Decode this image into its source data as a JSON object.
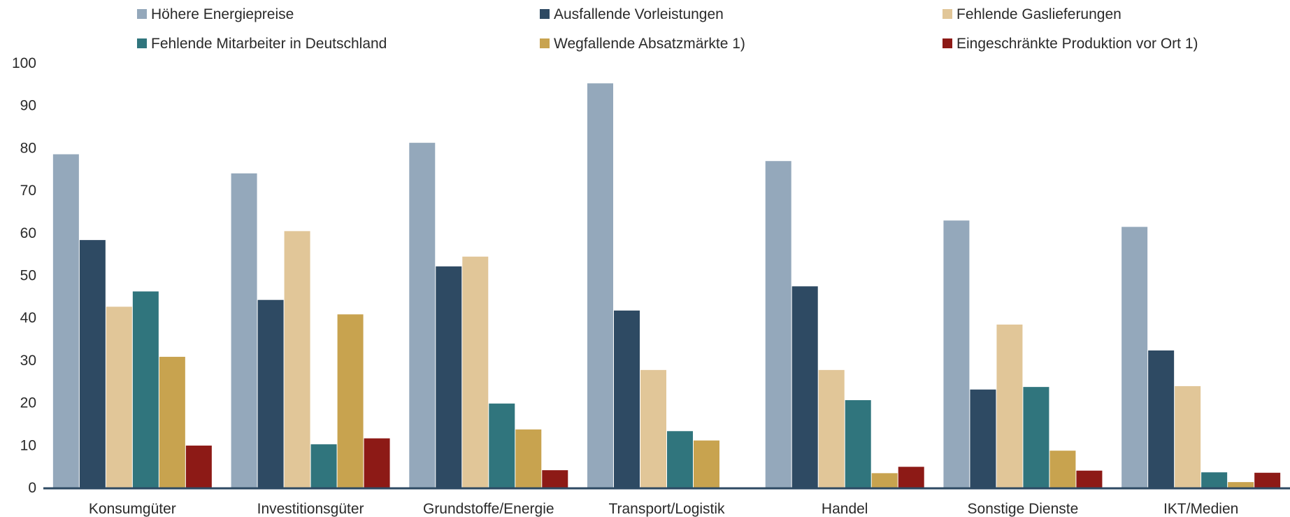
{
  "chart_data": {
    "type": "bar",
    "title": "",
    "xlabel": "",
    "ylabel": "",
    "ylim": [
      0,
      100
    ],
    "yticks": [
      0,
      10,
      20,
      30,
      40,
      50,
      60,
      70,
      80,
      90,
      100
    ],
    "grid": false,
    "legend_position": "top",
    "categories": [
      "Konsumgüter",
      "Investitionsgüter",
      "Grundstoffe/Energie",
      "Transport/Logistik",
      "Handel",
      "Sonstige Dienste",
      "IKT/Medien"
    ],
    "series": [
      {
        "name": "Höhere Energiepreise",
        "color": "#94a8bb",
        "values": [
          78.5,
          74,
          81.2,
          95.2,
          76.9,
          62.9,
          61.4
        ]
      },
      {
        "name": "Ausfallende Vorleistungen",
        "color": "#2e4a63",
        "values": [
          58.3,
          44.2,
          52.1,
          41.7,
          47.4,
          23.1,
          32.3
        ]
      },
      {
        "name": "Fehlende Gaslieferungen",
        "color": "#e1c698",
        "values": [
          42.6,
          60.4,
          54.4,
          27.7,
          27.7,
          38.4,
          23.9
        ]
      },
      {
        "name": "Fehlende Mitarbeiter in Deutschland",
        "color": "#30757d",
        "values": [
          46.2,
          10.2,
          19.8,
          13.3,
          20.6,
          23.7,
          3.6
        ]
      },
      {
        "name": "Wegfallende Absatzmärkte 1)",
        "color": "#c8a34f",
        "values": [
          30.8,
          40.8,
          13.7,
          11.1,
          3.4,
          8.7,
          1.3
        ]
      },
      {
        "name": "Eingeschränkte Produktion vor Ort 1)",
        "color": "#8d1a16",
        "values": [
          9.9,
          11.6,
          4.1,
          0,
          4.9,
          4.0,
          3.5
        ]
      }
    ]
  }
}
